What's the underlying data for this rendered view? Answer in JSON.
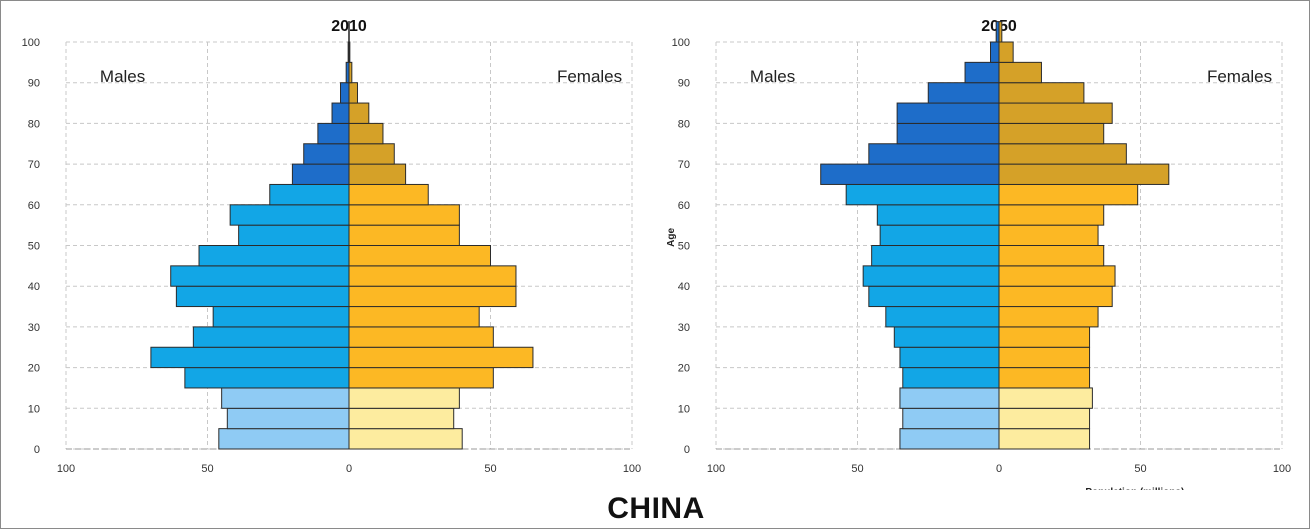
{
  "caption": "CHINA",
  "colors": {
    "male_young": "#8FCBF4",
    "male_working": "#12A6E6",
    "male_old": "#1E6DC9",
    "female_young": "#FDEC9F",
    "female_working": "#FCB824",
    "female_old": "#D5A128",
    "outline": "#2b2b2b",
    "grid": "#c8c8c8"
  },
  "chart_data": [
    {
      "type": "bar",
      "subtype": "population-pyramid",
      "title": "2010",
      "male_label": "Males",
      "female_label": "Females",
      "xlabel": "",
      "ylabel": "",
      "x_ticks": [
        "100",
        "50",
        "0",
        "50",
        "100"
      ],
      "y_ticks": [
        "0",
        "10",
        "20",
        "30",
        "40",
        "50",
        "60",
        "70",
        "80",
        "90",
        "100"
      ],
      "xlim": [
        -100,
        100
      ],
      "ylim": [
        0,
        100
      ],
      "grid": true,
      "age_groups": [
        "0-4",
        "5-9",
        "10-14",
        "15-19",
        "20-24",
        "25-29",
        "30-34",
        "35-39",
        "40-44",
        "45-49",
        "50-54",
        "55-59",
        "60-64",
        "65-69",
        "70-74",
        "75-79",
        "80-84",
        "85-89",
        "90-94",
        "95-99",
        "100+"
      ],
      "male": [
        46,
        43,
        45,
        58,
        70,
        55,
        48,
        61,
        63,
        53,
        39,
        42,
        28,
        20,
        16,
        11,
        6,
        3,
        1,
        0.3,
        0.1
      ],
      "female": [
        40,
        37,
        39,
        51,
        65,
        51,
        46,
        59,
        59,
        50,
        39,
        39,
        28,
        20,
        16,
        12,
        7,
        3,
        1,
        0.3,
        0.1
      ]
    },
    {
      "type": "bar",
      "subtype": "population-pyramid",
      "title": "2050",
      "male_label": "Males",
      "female_label": "Females",
      "xlabel": "Population (millions)",
      "ylabel": "Age",
      "x_ticks": [
        "100",
        "50",
        "0",
        "50",
        "100"
      ],
      "y_ticks": [
        "0",
        "10",
        "20",
        "30",
        "40",
        "50",
        "60",
        "70",
        "80",
        "90",
        "100"
      ],
      "xlim": [
        -100,
        100
      ],
      "ylim": [
        0,
        100
      ],
      "grid": true,
      "age_groups": [
        "0-4",
        "5-9",
        "10-14",
        "15-19",
        "20-24",
        "25-29",
        "30-34",
        "35-39",
        "40-44",
        "45-49",
        "50-54",
        "55-59",
        "60-64",
        "65-69",
        "70-74",
        "75-79",
        "80-84",
        "85-89",
        "90-94",
        "95-99",
        "100+"
      ],
      "male": [
        35,
        34,
        35,
        34,
        35,
        37,
        40,
        46,
        48,
        45,
        42,
        43,
        54,
        63,
        46,
        36,
        36,
        25,
        12,
        3,
        1
      ],
      "female": [
        32,
        32,
        33,
        32,
        32,
        32,
        35,
        40,
        41,
        37,
        35,
        37,
        49,
        60,
        45,
        37,
        40,
        30,
        15,
        5,
        1
      ]
    }
  ]
}
